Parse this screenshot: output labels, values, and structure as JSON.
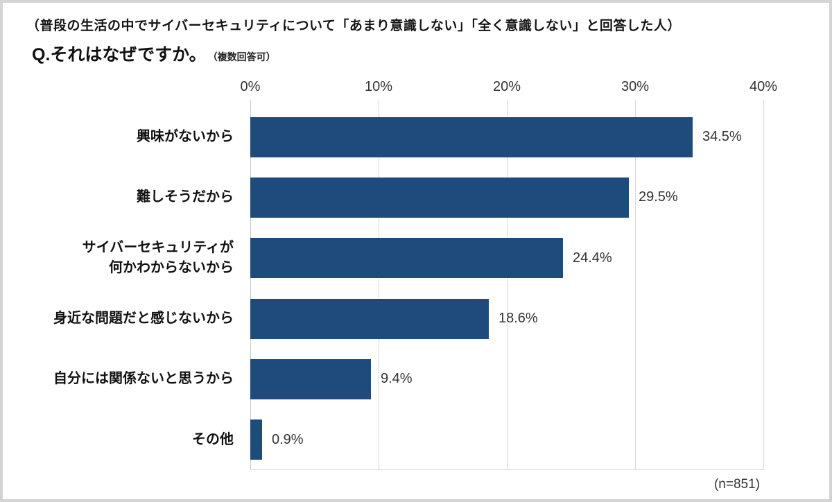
{
  "header": {
    "supertitle": "（普段の生活の中でサイバーセキュリティについて「あまり意識しない」「全く意識しない」と回答した人）",
    "question": "Q.それはなぜですか。",
    "question_note": "（複数回答可）"
  },
  "chart_data": {
    "type": "bar",
    "orientation": "horizontal",
    "title": "Q.それはなぜですか。（複数回答可）",
    "categories": [
      "興味がないから",
      "難しそうだから",
      "サイバーセキュリティが\n何かわからないから",
      "身近な問題だと感じないから",
      "自分には関係ないと思うから",
      "その他"
    ],
    "values": [
      34.5,
      29.5,
      24.4,
      18.6,
      9.4,
      0.9
    ],
    "value_labels": [
      "34.5%",
      "29.5%",
      "24.4%",
      "18.6%",
      "9.4%",
      "0.9%"
    ],
    "x_ticks": [
      "0%",
      "10%",
      "20%",
      "30%",
      "40%"
    ],
    "xlim": [
      0,
      40
    ],
    "xlabel": "",
    "ylabel": "",
    "grid": true,
    "legend": false,
    "bar_color": "#1e4b7c"
  },
  "footer": {
    "sample_size": "(n=851)"
  }
}
